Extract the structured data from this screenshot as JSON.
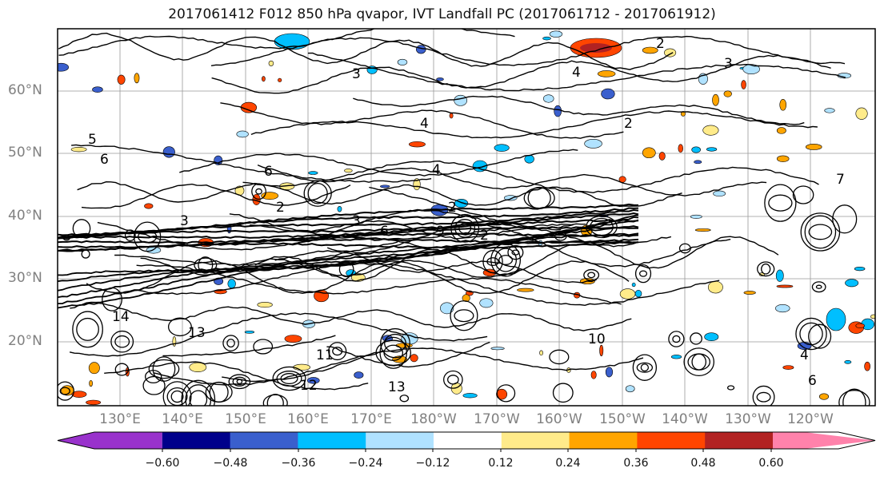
{
  "title": "2017061412 F012 850 hPa qvapor, IVT Landfall PC (2017061712 - 2017061912)",
  "map": {
    "lat_labels": [
      "60°N",
      "50°N",
      "40°N",
      "30°N",
      "20°N"
    ],
    "lon_labels": [
      "130°E",
      "140°E",
      "150°E",
      "160°E",
      "170°E",
      "180°W",
      "170°W",
      "160°W",
      "150°W",
      "140°W",
      "130°W",
      "120°W"
    ],
    "contour_labels": [
      "2",
      "3",
      "4",
      "4",
      "5",
      "6",
      "6",
      "2",
      "3",
      "7",
      "2",
      "2",
      "3",
      "14",
      "13",
      "12",
      "11",
      "10",
      "9",
      "6",
      "13",
      "6",
      "4",
      "3",
      "2",
      "4"
    ]
  },
  "colorbar": {
    "colors": [
      "#9932cc",
      "#00008b",
      "#3a5fcd",
      "#00bfff",
      "#b0e2ff",
      "#ffffff",
      "#ffeb8a",
      "#ffa500",
      "#ff4500",
      "#b22222",
      "#ff82ab"
    ],
    "tick_labels": [
      "−0.60",
      "−0.48",
      "−0.36",
      "−0.24",
      "−0.12",
      "0.12",
      "0.24",
      "0.36",
      "0.48",
      "0.60"
    ]
  }
}
